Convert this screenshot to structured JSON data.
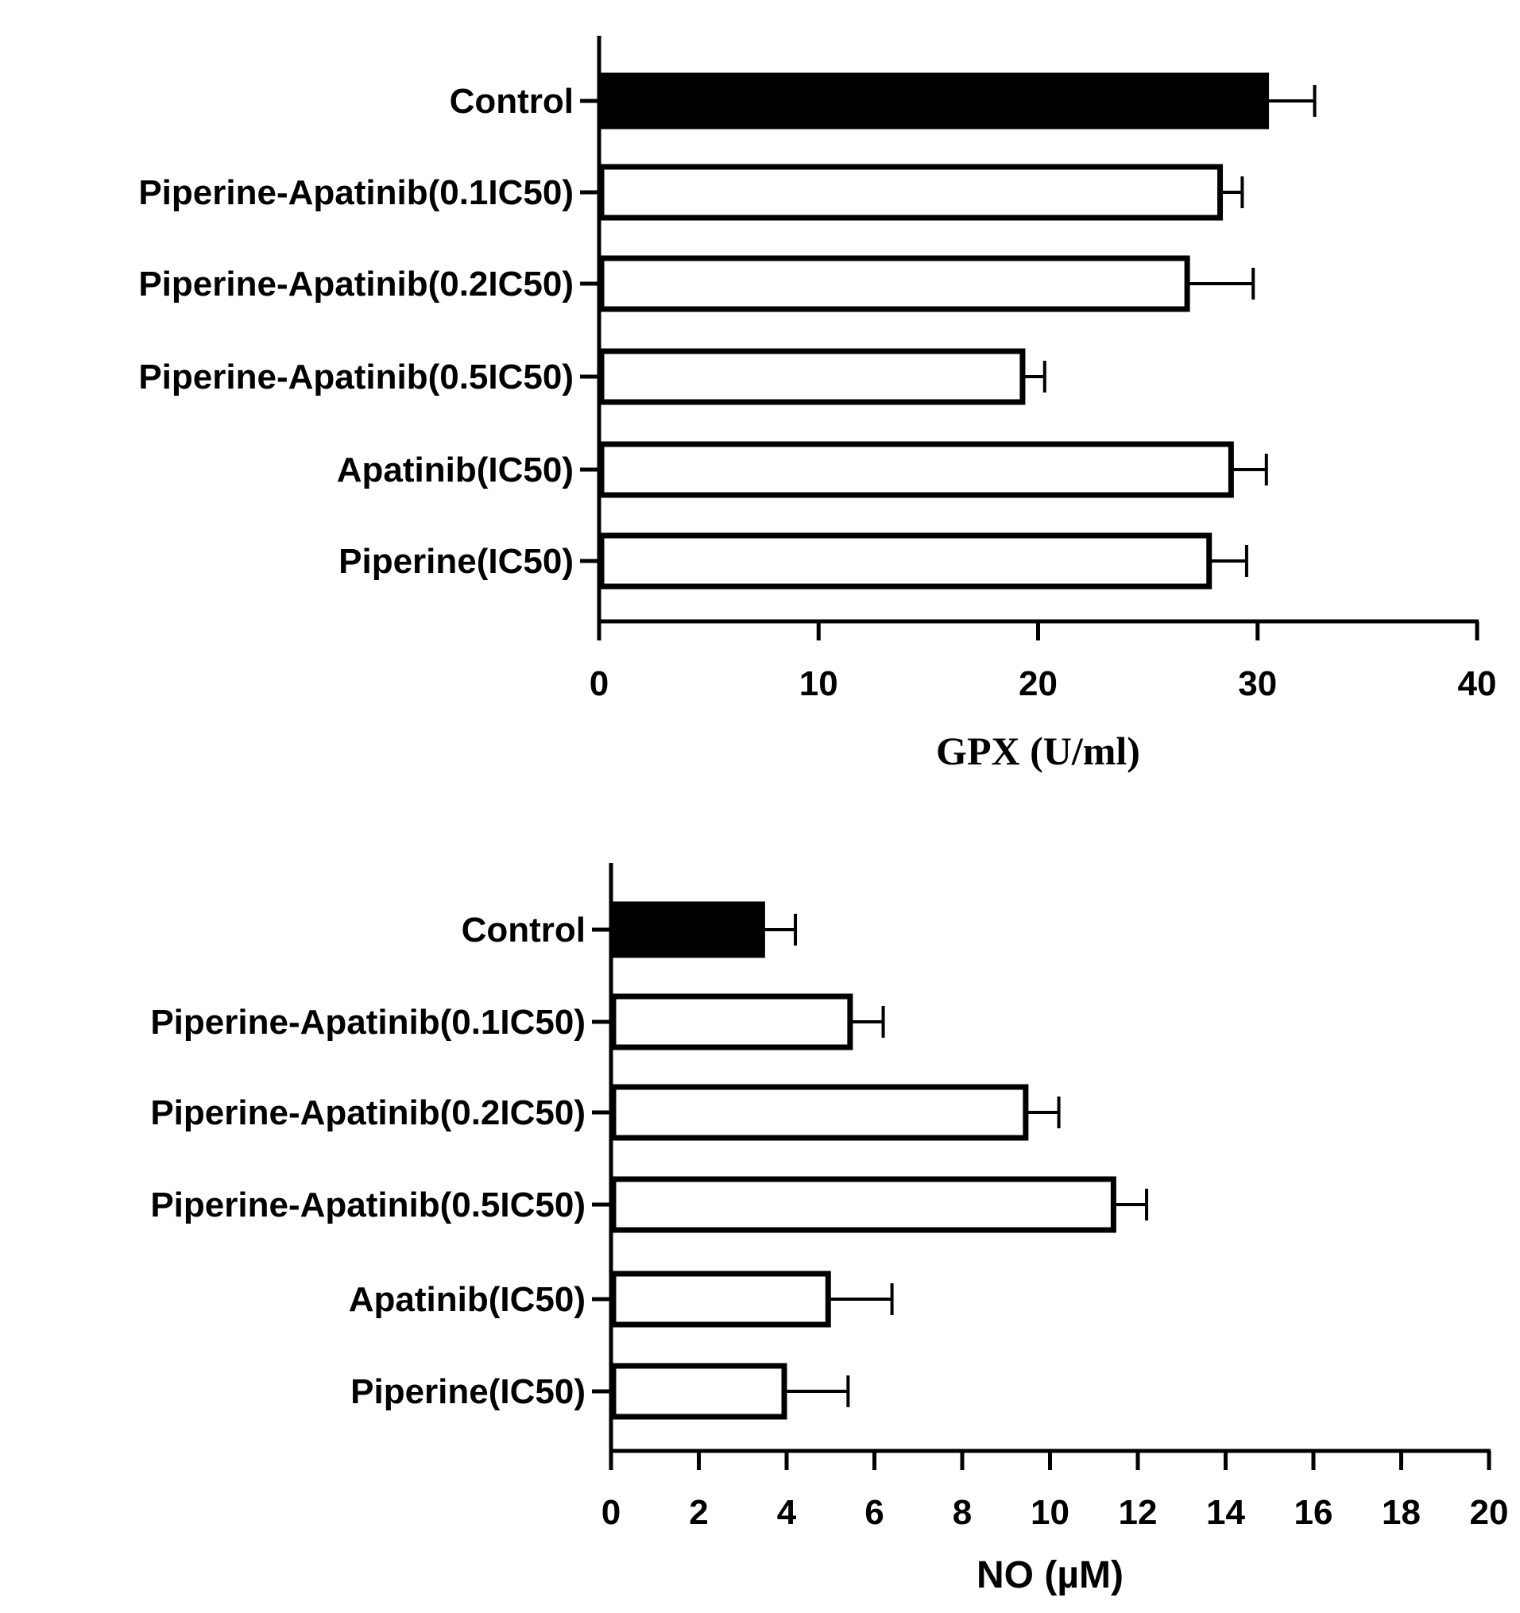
{
  "chart_data": [
    {
      "type": "bar",
      "orientation": "horizontal",
      "categories": [
        "Control",
        "Piperine-Apatinib(0.1IC50)",
        "Piperine-Apatinib(0.2IC50)",
        "Piperine-Apatinib(0.5IC50)",
        "Apatinib(IC50)",
        "Piperine(IC50)"
      ],
      "values": [
        30.5,
        28.4,
        26.9,
        19.4,
        28.9,
        27.9
      ],
      "error": [
        2.1,
        0.9,
        2.9,
        0.9,
        1.5,
        1.6
      ],
      "fills": [
        "#000000",
        "#ffffff",
        "#ffffff",
        "#ffffff",
        "#ffffff",
        "#ffffff"
      ],
      "xlabel": "GPX (U/ml)",
      "xlim": [
        0,
        40
      ],
      "xticks": [
        "0",
        "10",
        "20",
        "30",
        "40"
      ],
      "grid": false
    },
    {
      "type": "bar",
      "orientation": "horizontal",
      "categories": [
        "Control",
        "Piperine-Apatinib(0.1IC50)",
        "Piperine-Apatinib(0.2IC50)",
        "Piperine-Apatinib(0.5IC50)",
        "Apatinib(IC50)",
        "Piperine(IC50)"
      ],
      "values": [
        3.5,
        5.5,
        9.5,
        11.5,
        5.0,
        4.0
      ],
      "error": [
        0.7,
        0.7,
        0.7,
        0.7,
        1.4,
        1.4
      ],
      "fills": [
        "#000000",
        "#ffffff",
        "#ffffff",
        "#ffffff",
        "#ffffff",
        "#ffffff"
      ],
      "xlabel": "NO (µM)",
      "xlim": [
        0,
        20
      ],
      "xticks": [
        "0",
        "2",
        "4",
        "6",
        "8",
        "10",
        "12",
        "14",
        "16",
        "18",
        "20"
      ],
      "grid": false
    }
  ]
}
